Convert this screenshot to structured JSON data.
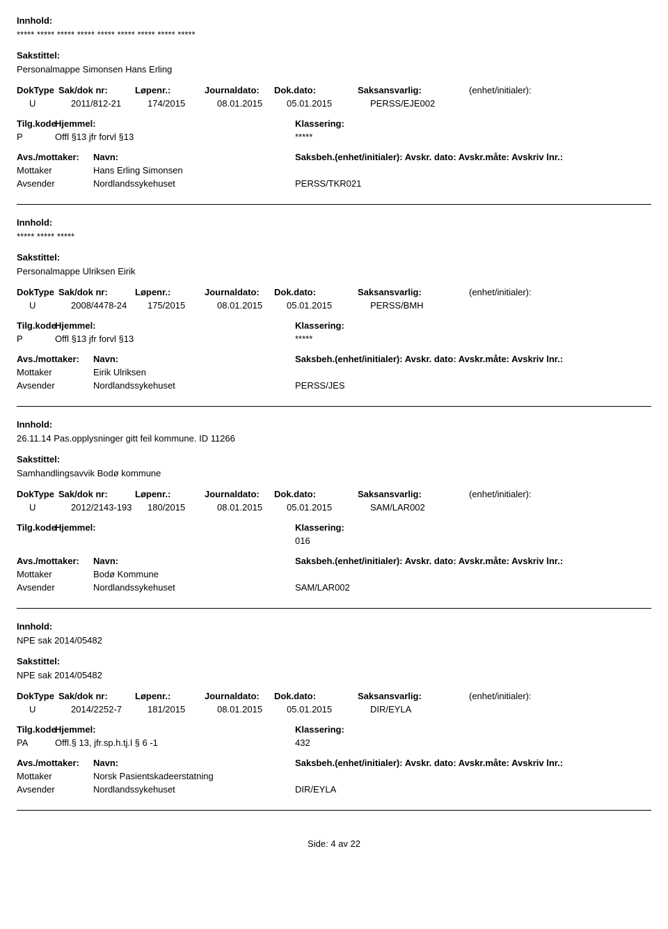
{
  "labels": {
    "innhold": "Innhold:",
    "sakstittel": "Sakstittel:",
    "doktype": "DokType",
    "sakdok": "Sak/dok nr:",
    "lopenr": "Løpenr.:",
    "journaldato": "Journaldato:",
    "dokdato": "Dok.dato:",
    "saksansvarlig": "Saksansvarlig:",
    "enhet": "(enhet/initialer):",
    "tilgkode": "Tilg.kode",
    "hjemmel": "Hjemmel:",
    "klassering": "Klassering:",
    "avsmottaker": "Avs./mottaker:",
    "navn": "Navn:",
    "saksbeh_line": "Saksbeh.(enhet/initialer): Avskr. dato:  Avskr.måte:  Avskriv lnr.:"
  },
  "entries": [
    {
      "innhold": "***** ***** ***** ***** ***** ***** ***** ***** *****",
      "sakstittel": "Personalmappe Simonsen Hans Erling",
      "doktype": "U",
      "sakdok": "2011/812-21",
      "lopenr": "174/2015",
      "journaldato": "08.01.2015",
      "dokdato": "05.01.2015",
      "saksansvarlig": "PERSS/EJE002",
      "tilgkode": "P",
      "hjemmel": "Offl §13 jfr forvl §13",
      "klassering": "*****",
      "parts": [
        {
          "role": "Mottaker",
          "navn": "Hans Erling Simonsen",
          "ref": ""
        },
        {
          "role": "Avsender",
          "navn": "Nordlandssykehuset",
          "ref": "PERSS/TKR021"
        }
      ]
    },
    {
      "innhold": "***** ***** *****",
      "sakstittel": "Personalmappe Ulriksen Eirik",
      "doktype": "U",
      "sakdok": "2008/4478-24",
      "lopenr": "175/2015",
      "journaldato": "08.01.2015",
      "dokdato": "05.01.2015",
      "saksansvarlig": "PERSS/BMH",
      "tilgkode": "P",
      "hjemmel": "Offl §13 jfr forvl §13",
      "klassering": "*****",
      "parts": [
        {
          "role": "Mottaker",
          "navn": "Eirik Ulriksen",
          "ref": ""
        },
        {
          "role": "Avsender",
          "navn": "Nordlandssykehuset",
          "ref": "PERSS/JES"
        }
      ]
    },
    {
      "innhold": "26.11.14 Pas.opplysninger gitt feil kommune. ID 11266",
      "sakstittel": "Samhandlingsavvik Bodø kommune",
      "doktype": "U",
      "sakdok": "2012/2143-193",
      "lopenr": "180/2015",
      "journaldato": "08.01.2015",
      "dokdato": "05.01.2015",
      "saksansvarlig": "SAM/LAR002",
      "tilgkode": "",
      "hjemmel": "",
      "klassering": "016",
      "parts": [
        {
          "role": "Mottaker",
          "navn": "Bodø Kommune",
          "ref": ""
        },
        {
          "role": "Avsender",
          "navn": "Nordlandssykehuset",
          "ref": "SAM/LAR002"
        }
      ]
    },
    {
      "innhold": "NPE sak 2014/05482",
      "sakstittel": "NPE sak 2014/05482",
      "doktype": "U",
      "sakdok": "2014/2252-7",
      "lopenr": "181/2015",
      "journaldato": "08.01.2015",
      "dokdato": "05.01.2015",
      "saksansvarlig": "DIR/EYLA",
      "tilgkode": "PA",
      "hjemmel": "Offl.§ 13, jfr.sp.h.tj.l § 6 -1",
      "klassering": "432",
      "parts": [
        {
          "role": "Mottaker",
          "navn": "Norsk Pasientskadeerstatning",
          "ref": ""
        },
        {
          "role": "Avsender",
          "navn": "Nordlandssykehuset",
          "ref": "DIR/EYLA"
        }
      ]
    }
  ],
  "footer": "Side: 4 av 22"
}
